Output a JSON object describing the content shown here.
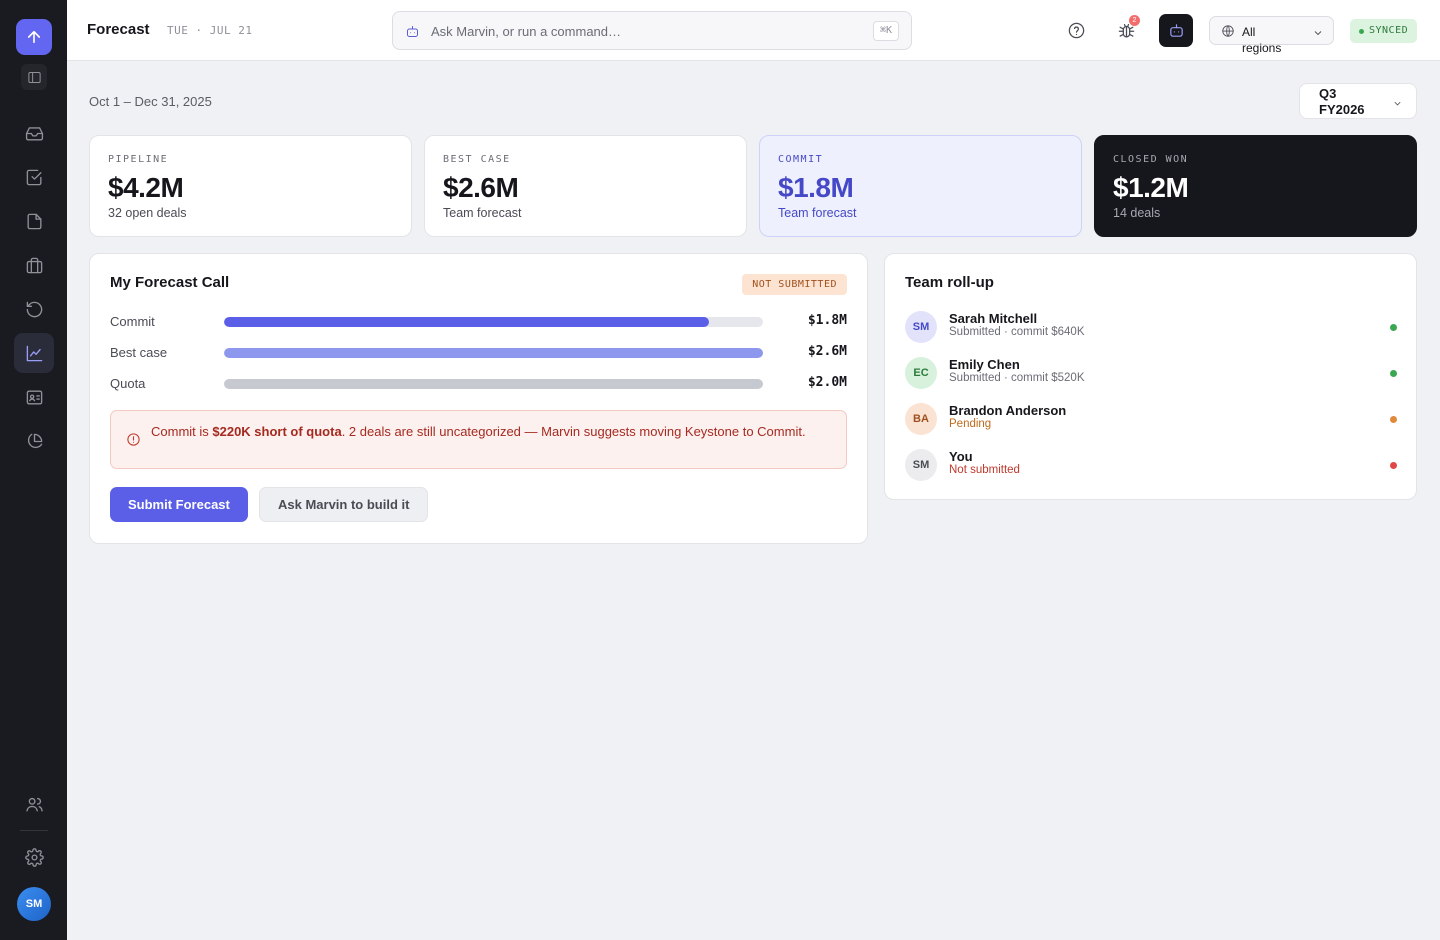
{
  "colors": {
    "accent": "#5b5fe8",
    "commit_bar": "#5b5fe8",
    "best_case_bar": "#8e97ee",
    "quota_bar": "#c7c9d1",
    "ok": "#3aa852",
    "pending": "#e08a3c",
    "bad": "#e04848"
  },
  "sidebar": {
    "logo_icon": "arrow-up-icon",
    "items": [
      {
        "icon": "inbox-icon"
      },
      {
        "icon": "check-square-icon"
      },
      {
        "icon": "file-icon"
      },
      {
        "icon": "briefcase-icon"
      },
      {
        "icon": "history-icon"
      },
      {
        "icon": "trend-chart-icon",
        "active": true
      },
      {
        "icon": "contact-card-icon"
      },
      {
        "icon": "pie-chart-icon"
      }
    ],
    "bottom": [
      {
        "icon": "users-icon"
      },
      {
        "icon": "gear-icon"
      }
    ],
    "avatar_initials": "SM"
  },
  "header": {
    "title": "Forecast",
    "date": "TUE · JUL 21",
    "search_placeholder": "Ask Marvin, or run a command…",
    "shortcut": "⌘K",
    "bug_count": "2",
    "region": "All regions",
    "sync_status": "SYNCED"
  },
  "main": {
    "date_range": "Oct 1 – Dec 31, 2025",
    "quarter": "Q3 FY2026",
    "kpis": [
      {
        "label": "PIPELINE",
        "value": "$4.2M",
        "sub": "32 open deals"
      },
      {
        "label": "BEST CASE",
        "value": "$2.6M",
        "sub": "Team forecast"
      },
      {
        "label": "COMMIT",
        "value": "$1.8M",
        "sub": "Team forecast"
      },
      {
        "label": "CLOSED WON",
        "value": "$1.2M",
        "sub": "14 deals"
      }
    ],
    "forecast_call": {
      "title": "My Forecast Call",
      "status": "NOT SUBMITTED",
      "rows": [
        {
          "label": "Commit",
          "value": "$1.8M",
          "fill": 0.9
        },
        {
          "label": "Best case",
          "value": "$2.6M",
          "fill": 1.0
        },
        {
          "label": "Quota",
          "value": "$2.0M",
          "fill": 1.0
        }
      ],
      "alert_prefix": "Commit is ",
      "alert_bold": "$220K short of quota",
      "alert_suffix": ". 2 deals are still uncategorized — Marvin suggests moving Keystone to Commit.",
      "submit_label": "Submit Forecast",
      "ask_label": "Ask Marvin to build it"
    },
    "rollup": {
      "title": "Team roll-up",
      "members": [
        {
          "initials": "SM",
          "name": "Sarah Mitchell",
          "status": "Submitted · commit $640K",
          "state": "ok"
        },
        {
          "initials": "EC",
          "name": "Emily Chen",
          "status": "Submitted · commit $520K",
          "state": "ok"
        },
        {
          "initials": "BA",
          "name": "Brandon Anderson",
          "status": "Pending",
          "state": "pending"
        },
        {
          "initials": "SM",
          "name": "You",
          "status": "Not submitted",
          "state": "bad"
        }
      ]
    }
  }
}
